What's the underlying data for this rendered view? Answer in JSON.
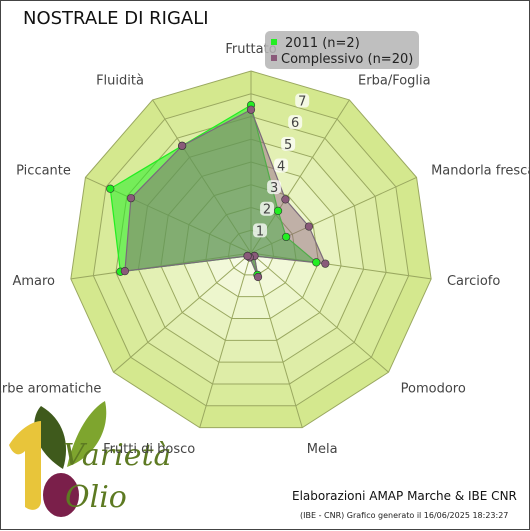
{
  "title": "NOSTRALE DI RIGALI",
  "footer": {
    "credit": "Elaborazioni AMAP Marche & IBE CNR",
    "generated": "(IBE - CNR) Grafico generato il 16/06/2025 18:23:27"
  },
  "logo": {
    "word1": "Varietà",
    "word2": "Olio"
  },
  "colors": {
    "ring_outer": "#d4e88e",
    "ring_inner": "#f7fbe6",
    "series_2011": "#22ee22",
    "series_all": "#8a5a7a",
    "background": "#ffffff"
  },
  "chart_data": {
    "type": "radar",
    "title": "NOSTRALE DI RIGALI",
    "categories": [
      "Fruttato",
      "Erba/Foglia",
      "Mandorla fresca",
      "Carciofo",
      "Pomodoro",
      "Mela",
      "Frutti di bosco",
      "Erbe aromatiche",
      "Amaro",
      "Piccante",
      "Fluidità"
    ],
    "rlim": [
      0,
      8
    ],
    "ticks": [
      "1",
      "2",
      "3",
      "4",
      "5",
      "6",
      "7"
    ],
    "series": [
      {
        "name": "2011 (n=2)",
        "values": [
          6.5,
          2.2,
          1.7,
          2.9,
          0.2,
          1.0,
          0.2,
          0.2,
          5.8,
          6.8,
          5.6
        ]
      },
      {
        "name": "Complessivo (n=20)",
        "values": [
          6.3,
          2.8,
          2.8,
          3.3,
          0.2,
          1.1,
          0.2,
          0.2,
          5.6,
          5.8,
          5.6
        ]
      }
    ],
    "legend_position": "top-right",
    "grid": true
  }
}
